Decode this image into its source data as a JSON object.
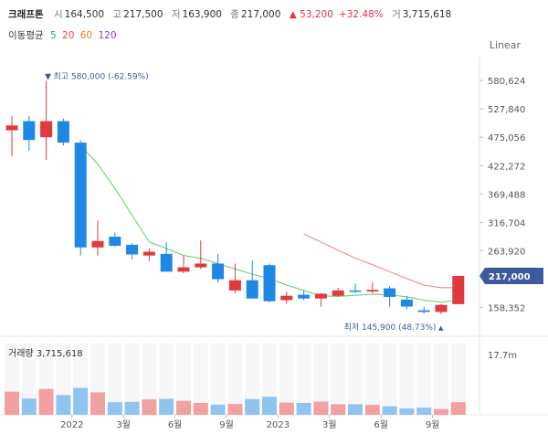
{
  "header": {
    "stock_name": "크래프톤",
    "open_label": "시",
    "open_value": "164,500",
    "high_label": "고",
    "high_value": "217,500",
    "low_label": "저",
    "low_value": "163,900",
    "close_label": "종",
    "close_value": "217,000",
    "change": "▲ 53,200",
    "change_pct": "+32.48%",
    "volume_label": "거",
    "volume_value": "3,715,618"
  },
  "ma_legend": {
    "title": "이동평균",
    "periods": [
      "5",
      "20",
      "60",
      "120"
    ]
  },
  "scale_mode": "Linear",
  "colors": {
    "up": "#e0393e",
    "down": "#1e88e5",
    "up_volume": "#f2a0a0",
    "down_volume": "#90c4f0",
    "ma5": "#66c96a",
    "ma20": "#f08080",
    "price_tag": "#3d5a9c"
  },
  "chart_data": {
    "type": "candlestick",
    "y_ticks": [
      "580,624",
      "527,840",
      "475,056",
      "422,272",
      "369,488",
      "316,704",
      "263,920",
      "158,352"
    ],
    "y_ticks_values": [
      580624,
      527840,
      475056,
      422272,
      369488,
      316704,
      263920,
      158352
    ],
    "ylim": [
      115000,
      625000
    ],
    "x_labels": [
      "2022",
      "3월",
      "6월",
      "9월",
      "2023",
      "3월",
      "6월",
      "9월"
    ],
    "x_label_index": [
      3.5,
      6.5,
      9.5,
      12.5,
      15.5,
      18.5,
      21.5,
      24.5
    ],
    "candles": [
      {
        "o": 488000,
        "h": 515000,
        "l": 440000,
        "c": 497000
      },
      {
        "o": 505000,
        "h": 515000,
        "l": 450000,
        "c": 470000
      },
      {
        "o": 475000,
        "h": 580000,
        "l": 433000,
        "c": 505000
      },
      {
        "o": 505000,
        "h": 510000,
        "l": 460000,
        "c": 465000
      },
      {
        "o": 465000,
        "h": 470000,
        "l": 255000,
        "c": 270000
      },
      {
        "o": 270000,
        "h": 320000,
        "l": 255000,
        "c": 282000
      },
      {
        "o": 290000,
        "h": 298000,
        "l": 272000,
        "c": 273000
      },
      {
        "o": 275000,
        "h": 278000,
        "l": 248000,
        "c": 257000
      },
      {
        "o": 255000,
        "h": 268000,
        "l": 245000,
        "c": 262000
      },
      {
        "o": 258000,
        "h": 280000,
        "l": 225000,
        "c": 225000
      },
      {
        "o": 225000,
        "h": 255000,
        "l": 222000,
        "c": 233000
      },
      {
        "o": 233000,
        "h": 283000,
        "l": 230000,
        "c": 240000
      },
      {
        "o": 240000,
        "h": 258000,
        "l": 205000,
        "c": 211000
      },
      {
        "o": 190000,
        "h": 240000,
        "l": 185000,
        "c": 209000
      },
      {
        "o": 209000,
        "h": 245000,
        "l": 175000,
        "c": 175000
      },
      {
        "o": 237000,
        "h": 240000,
        "l": 168000,
        "c": 170000
      },
      {
        "o": 172000,
        "h": 188000,
        "l": 165000,
        "c": 180000
      },
      {
        "o": 182000,
        "h": 190000,
        "l": 172000,
        "c": 175000
      },
      {
        "o": 175000,
        "h": 185000,
        "l": 160000,
        "c": 184000
      },
      {
        "o": 180000,
        "h": 195000,
        "l": 178000,
        "c": 190000
      },
      {
        "o": 190000,
        "h": 203000,
        "l": 185000,
        "c": 188000
      },
      {
        "o": 188000,
        "h": 205000,
        "l": 185000,
        "c": 191000
      },
      {
        "o": 194000,
        "h": 198000,
        "l": 160000,
        "c": 178000
      },
      {
        "o": 173000,
        "h": 180000,
        "l": 155000,
        "c": 160000
      },
      {
        "o": 153000,
        "h": 160000,
        "l": 147000,
        "c": 150000
      },
      {
        "o": 150000,
        "h": 165000,
        "l": 146000,
        "c": 163000
      },
      {
        "o": 164500,
        "h": 217500,
        "l": 163900,
        "c": 217000
      }
    ],
    "ma5": [
      null,
      null,
      null,
      null,
      460000,
      425000,
      380000,
      330000,
      280000,
      268000,
      255000,
      250000,
      240000,
      230000,
      220000,
      212000,
      200000,
      190000,
      180000,
      179000,
      181000,
      183000,
      182000,
      178000,
      172000,
      168000,
      172000
    ],
    "ma20": [
      null,
      null,
      null,
      null,
      null,
      null,
      null,
      null,
      null,
      null,
      null,
      null,
      null,
      null,
      null,
      null,
      null,
      295000,
      280000,
      265000,
      250000,
      238000,
      225000,
      212000,
      200000,
      195000,
      195000
    ],
    "annotations": {
      "high": "최고 580,000 (-62.59%)",
      "high_value": 580000,
      "high_index": 2,
      "low": "최저 145,900 (48.73%)",
      "low_value": 145900,
      "low_index": 25,
      "last_price": "217,000",
      "last_value": 217000
    },
    "volume": {
      "label": "거래량 3,715,618",
      "tick": "17.7m",
      "tick_value": 17700000,
      "ylim": [
        0,
        22000000
      ],
      "values": [
        6800000,
        4800000,
        7600000,
        5800000,
        7900000,
        6600000,
        3700000,
        3800000,
        4500000,
        4700000,
        4100000,
        3500000,
        3000000,
        3200000,
        4600000,
        5300000,
        3600000,
        3500000,
        3900000,
        3100000,
        3100000,
        2900000,
        2500000,
        1900000,
        2100000,
        1700000,
        3715618
      ]
    }
  }
}
